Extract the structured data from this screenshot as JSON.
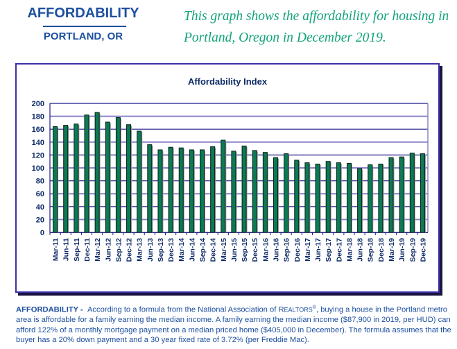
{
  "header": {
    "title": "AFFORDABILITY",
    "subtitle": "PORTLAND, OR",
    "description": "This graph shows the affordability for housing in Portland, Oregon in December 2019."
  },
  "colors": {
    "brand_blue": "#1d4fa0",
    "teal_text": "#12a37a",
    "bar_fill": "#0b7a55",
    "frame": "#3b2fa8",
    "grid_dark": "#1f1a8a",
    "grid_light": "#8a84c8"
  },
  "chart_data": {
    "type": "bar",
    "title": "Affordability Index",
    "xlabel": "",
    "ylabel": "",
    "ylim": [
      0,
      200
    ],
    "yticks": [
      0,
      20,
      40,
      60,
      80,
      100,
      120,
      140,
      160,
      180,
      200
    ],
    "grid": true,
    "legend": "none",
    "categories": [
      "Mar-11",
      "Jun-11",
      "Sep-11",
      "Dec-11",
      "Mar-12",
      "Jun-12",
      "Sep-12",
      "Dec-12",
      "Mar-13",
      "Jun-13",
      "Sep-13",
      "Dec-13",
      "Mar-14",
      "Jun-14",
      "Sep-14",
      "Dec-14",
      "Mar-15",
      "Jun-15",
      "Sep-15",
      "Dec-15",
      "Mar-16",
      "Jun-16",
      "Sep-16",
      "Dec-16",
      "Mar-17",
      "Jun-17",
      "Sep-17",
      "Dec-17",
      "Mar-18",
      "Jun-18",
      "Sep-18",
      "Dec-18",
      "Mar-19",
      "Jun-19",
      "Sep-19",
      "Dec-19"
    ],
    "values": [
      164,
      166,
      168,
      182,
      186,
      171,
      178,
      167,
      157,
      136,
      128,
      132,
      131,
      128,
      128,
      133,
      143,
      126,
      134,
      127,
      124,
      116,
      122,
      112,
      108,
      106,
      110,
      108,
      107,
      99,
      105,
      106,
      116,
      117,
      123,
      122
    ]
  },
  "footer": {
    "lead": "AFFORDABILITY -",
    "text_before_realtors": "According to a formula from the National Association of R",
    "realtors_smallcaps": "EALTORS",
    "registered": "®",
    "text_after": ", buying a house in the Portland metro area is affordable for a family earning the median income. A family earning the median income ($87,900 in 2019, per HUD) can afford 122% of a monthly mortgage payment on a median priced home ($405,000 in December). The formula assumes that the buyer has a 20% down payment and a 30 year fixed rate of 3.72% (per Freddie Mac)."
  }
}
